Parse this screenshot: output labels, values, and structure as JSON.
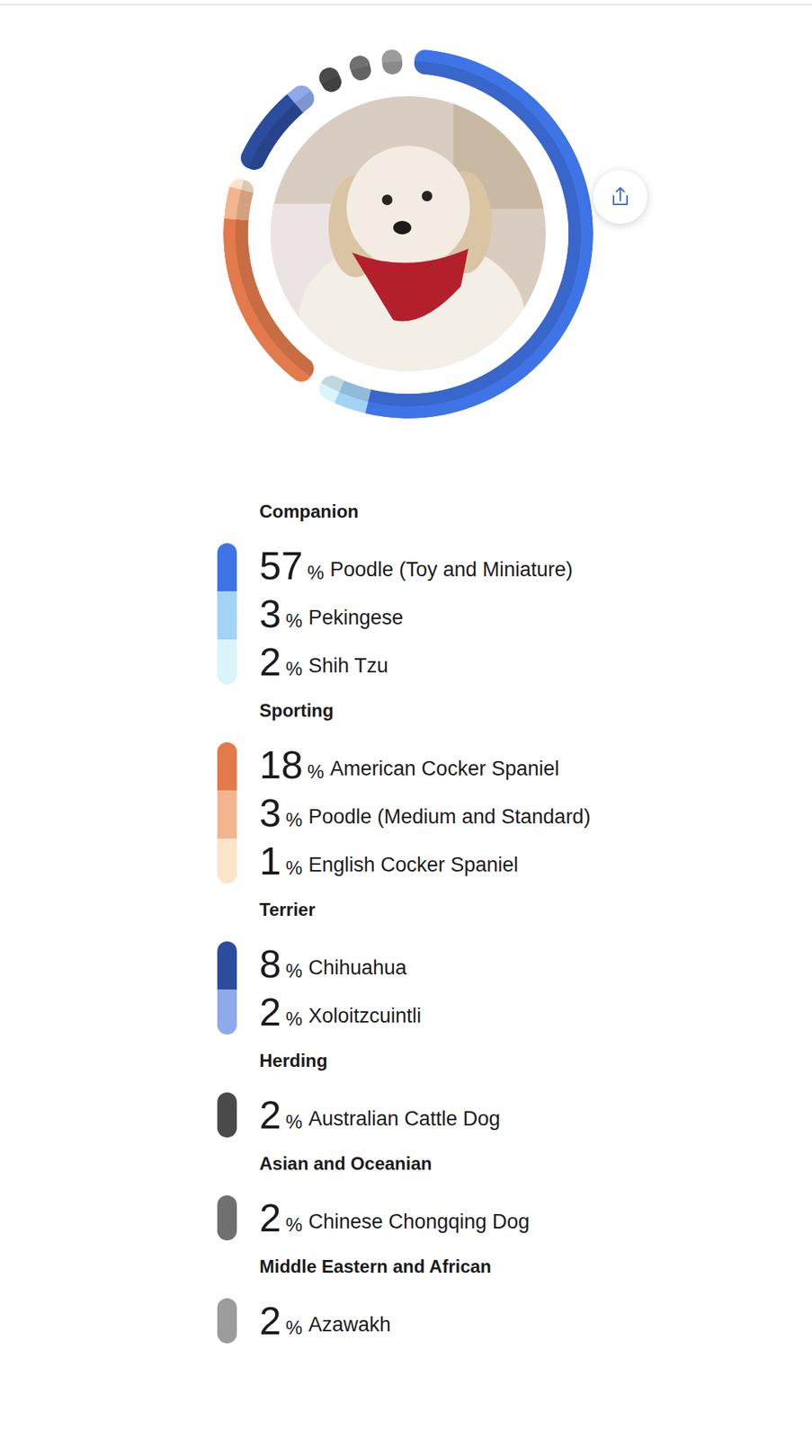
{
  "chart_data": {
    "type": "donut",
    "data_labels": true,
    "series": [
      {
        "name": "Companion",
        "categories": [
          "Poodle (Toy and Miniature)",
          "Pekingese",
          "Shih Tzu"
        ],
        "values": [
          57,
          3,
          2
        ],
        "value_labels": [
          "57%",
          "3%",
          "2%"
        ],
        "colors": [
          "#3f74e6",
          "#a3d3f6",
          "#d9f4fb"
        ]
      },
      {
        "name": "Sporting",
        "categories": [
          "American Cocker Spaniel",
          "Poodle (Medium and Standard)",
          "English Cocker Spaniel"
        ],
        "values": [
          18,
          3,
          1
        ],
        "value_labels": [
          "18%",
          "3%",
          "1%"
        ],
        "colors": [
          "#e27a4c",
          "#f3b58f",
          "#fbe4c8"
        ]
      },
      {
        "name": "Terrier",
        "categories": [
          "Chihuahua",
          "Xoloitzcuintli"
        ],
        "values": [
          8,
          2
        ],
        "value_labels": [
          "8%",
          "2%"
        ],
        "colors": [
          "#2c4c9e",
          "#8eaaeb"
        ]
      },
      {
        "name": "Herding",
        "categories": [
          "Australian Cattle Dog"
        ],
        "values": [
          2
        ],
        "value_labels": [
          "2%"
        ],
        "colors": [
          "#4a4a4a"
        ]
      },
      {
        "name": "Asian and Oceanian",
        "categories": [
          "Chinese Chongqing Dog"
        ],
        "values": [
          2
        ],
        "value_labels": [
          "2%"
        ],
        "colors": [
          "#707070"
        ]
      },
      {
        "name": "Middle Eastern and African",
        "categories": [
          "Azawakh"
        ],
        "values": [
          2
        ],
        "value_labels": [
          "2%"
        ],
        "colors": [
          "#9c9c9c"
        ]
      }
    ]
  }
}
